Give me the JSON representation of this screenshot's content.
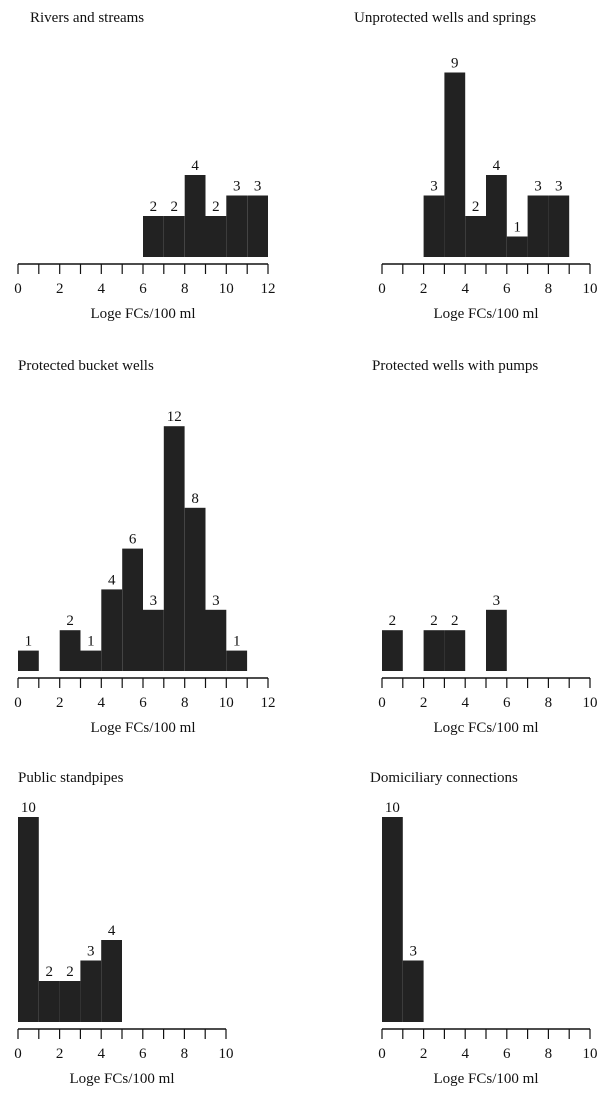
{
  "chart_data": [
    {
      "type": "bar",
      "title": "Rivers and streams",
      "xlabel": "Loge FCs/100 ml",
      "xlim": [
        0,
        12
      ],
      "xticks": [
        0,
        2,
        4,
        6,
        8,
        10,
        12
      ],
      "bin_width": 1,
      "bins": [
        [
          6,
          2
        ],
        [
          7,
          2
        ],
        [
          8,
          4
        ],
        [
          9,
          2
        ],
        [
          10,
          3
        ],
        [
          11,
          3
        ]
      ],
      "color": "#222222"
    },
    {
      "type": "bar",
      "title": "Unprotected wells and springs",
      "xlabel": "Loge FCs/100 ml",
      "xlim": [
        0,
        10
      ],
      "xticks": [
        0,
        2,
        4,
        6,
        8,
        10
      ],
      "bin_width": 1,
      "bins": [
        [
          2,
          3
        ],
        [
          3,
          9
        ],
        [
          4,
          2
        ],
        [
          5,
          4
        ],
        [
          6,
          1
        ],
        [
          7,
          3
        ],
        [
          8,
          3
        ]
      ],
      "color": "#222222"
    },
    {
      "type": "bar",
      "title": "Protected bucket wells",
      "xlabel": "Loge FCs/100 ml",
      "xlim": [
        0,
        12
      ],
      "xticks": [
        0,
        2,
        4,
        6,
        8,
        10,
        12
      ],
      "bin_width": 1,
      "bins": [
        [
          0,
          1
        ],
        [
          2,
          2
        ],
        [
          3,
          1
        ],
        [
          4,
          4
        ],
        [
          5,
          6
        ],
        [
          6,
          3
        ],
        [
          7,
          12
        ],
        [
          8,
          8
        ],
        [
          9,
          3
        ],
        [
          10,
          1
        ]
      ],
      "color": "#222222"
    },
    {
      "type": "bar",
      "title": "Protected wells with pumps",
      "xlabel": "Logc FCs/100 ml",
      "xlim": [
        0,
        10
      ],
      "xticks": [
        0,
        2,
        4,
        6,
        8,
        10
      ],
      "bin_width": 1,
      "bins": [
        [
          0,
          2
        ],
        [
          2,
          2
        ],
        [
          3,
          2
        ],
        [
          5,
          3
        ]
      ],
      "color": "#222222"
    },
    {
      "type": "bar",
      "title": "Public standpipes",
      "xlabel": "Loge FCs/100 ml",
      "xlim": [
        0,
        10
      ],
      "xticks": [
        0,
        2,
        4,
        6,
        8,
        10
      ],
      "bin_width": 1,
      "bins": [
        [
          0,
          10
        ],
        [
          1,
          2
        ],
        [
          2,
          2
        ],
        [
          3,
          3
        ],
        [
          4,
          4
        ]
      ],
      "color": "#222222"
    },
    {
      "type": "bar",
      "title": "Domiciliary connections",
      "xlabel": "Loge FCs/100 ml",
      "xlim": [
        0,
        10
      ],
      "xticks": [
        0,
        2,
        4,
        6,
        8,
        10
      ],
      "bin_width": 1,
      "bins": [
        [
          0,
          10
        ],
        [
          1,
          3
        ]
      ],
      "color": "#222222"
    }
  ]
}
